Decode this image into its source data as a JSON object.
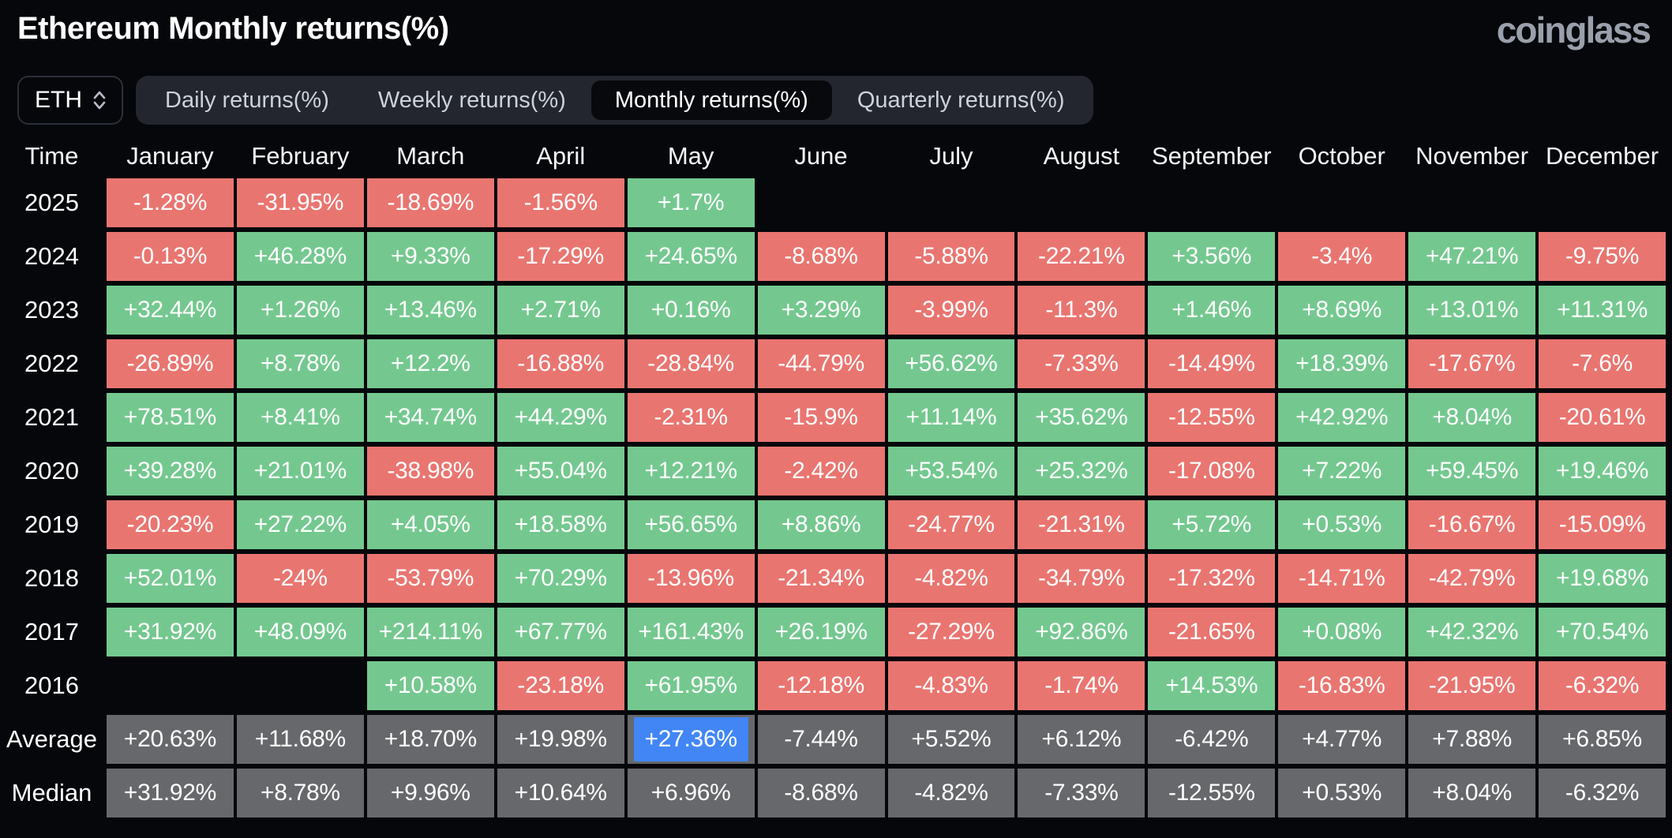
{
  "header": {
    "title": "Ethereum Monthly returns(%)",
    "logo": "coinglass"
  },
  "controls": {
    "symbol_select": {
      "value": "ETH",
      "icon": "updown-chevron-icon"
    },
    "tabs": {
      "items": [
        {
          "label": "Daily returns(%)",
          "active": false
        },
        {
          "label": "Weekly returns(%)",
          "active": false
        },
        {
          "label": "Monthly returns(%)",
          "active": true
        },
        {
          "label": "Quarterly returns(%)",
          "active": false
        }
      ]
    }
  },
  "table": {
    "columns": [
      "Time",
      "January",
      "February",
      "March",
      "April",
      "May",
      "June",
      "July",
      "August",
      "September",
      "October",
      "November",
      "December"
    ],
    "rows": [
      {
        "label": "2025",
        "cells": [
          {
            "v": "-1.28%",
            "c": "r"
          },
          {
            "v": "-31.95%",
            "c": "r"
          },
          {
            "v": "-18.69%",
            "c": "r"
          },
          {
            "v": "-1.56%",
            "c": "r"
          },
          {
            "v": "+1.7%",
            "c": "g"
          },
          null,
          null,
          null,
          null,
          null,
          null,
          null
        ]
      },
      {
        "label": "2024",
        "cells": [
          {
            "v": "-0.13%",
            "c": "r"
          },
          {
            "v": "+46.28%",
            "c": "g"
          },
          {
            "v": "+9.33%",
            "c": "g"
          },
          {
            "v": "-17.29%",
            "c": "r"
          },
          {
            "v": "+24.65%",
            "c": "g"
          },
          {
            "v": "-8.68%",
            "c": "r"
          },
          {
            "v": "-5.88%",
            "c": "r"
          },
          {
            "v": "-22.21%",
            "c": "r"
          },
          {
            "v": "+3.56%",
            "c": "g"
          },
          {
            "v": "-3.4%",
            "c": "r"
          },
          {
            "v": "+47.21%",
            "c": "g"
          },
          {
            "v": "-9.75%",
            "c": "r"
          }
        ]
      },
      {
        "label": "2023",
        "cells": [
          {
            "v": "+32.44%",
            "c": "g"
          },
          {
            "v": "+1.26%",
            "c": "g"
          },
          {
            "v": "+13.46%",
            "c": "g"
          },
          {
            "v": "+2.71%",
            "c": "g"
          },
          {
            "v": "+0.16%",
            "c": "g"
          },
          {
            "v": "+3.29%",
            "c": "g"
          },
          {
            "v": "-3.99%",
            "c": "r"
          },
          {
            "v": "-11.3%",
            "c": "r"
          },
          {
            "v": "+1.46%",
            "c": "g"
          },
          {
            "v": "+8.69%",
            "c": "g"
          },
          {
            "v": "+13.01%",
            "c": "g"
          },
          {
            "v": "+11.31%",
            "c": "g"
          }
        ]
      },
      {
        "label": "2022",
        "cells": [
          {
            "v": "-26.89%",
            "c": "r"
          },
          {
            "v": "+8.78%",
            "c": "g"
          },
          {
            "v": "+12.2%",
            "c": "g"
          },
          {
            "v": "-16.88%",
            "c": "r"
          },
          {
            "v": "-28.84%",
            "c": "r"
          },
          {
            "v": "-44.79%",
            "c": "r"
          },
          {
            "v": "+56.62%",
            "c": "g"
          },
          {
            "v": "-7.33%",
            "c": "r"
          },
          {
            "v": "-14.49%",
            "c": "r"
          },
          {
            "v": "+18.39%",
            "c": "g"
          },
          {
            "v": "-17.67%",
            "c": "r"
          },
          {
            "v": "-7.6%",
            "c": "r"
          }
        ]
      },
      {
        "label": "2021",
        "cells": [
          {
            "v": "+78.51%",
            "c": "g"
          },
          {
            "v": "+8.41%",
            "c": "g"
          },
          {
            "v": "+34.74%",
            "c": "g"
          },
          {
            "v": "+44.29%",
            "c": "g"
          },
          {
            "v": "-2.31%",
            "c": "r"
          },
          {
            "v": "-15.9%",
            "c": "r"
          },
          {
            "v": "+11.14%",
            "c": "g"
          },
          {
            "v": "+35.62%",
            "c": "g"
          },
          {
            "v": "-12.55%",
            "c": "r"
          },
          {
            "v": "+42.92%",
            "c": "g"
          },
          {
            "v": "+8.04%",
            "c": "g"
          },
          {
            "v": "-20.61%",
            "c": "r"
          }
        ]
      },
      {
        "label": "2020",
        "cells": [
          {
            "v": "+39.28%",
            "c": "g"
          },
          {
            "v": "+21.01%",
            "c": "g"
          },
          {
            "v": "-38.98%",
            "c": "r"
          },
          {
            "v": "+55.04%",
            "c": "g"
          },
          {
            "v": "+12.21%",
            "c": "g"
          },
          {
            "v": "-2.42%",
            "c": "r"
          },
          {
            "v": "+53.54%",
            "c": "g"
          },
          {
            "v": "+25.32%",
            "c": "g"
          },
          {
            "v": "-17.08%",
            "c": "r"
          },
          {
            "v": "+7.22%",
            "c": "g"
          },
          {
            "v": "+59.45%",
            "c": "g"
          },
          {
            "v": "+19.46%",
            "c": "g"
          }
        ]
      },
      {
        "label": "2019",
        "cells": [
          {
            "v": "-20.23%",
            "c": "r"
          },
          {
            "v": "+27.22%",
            "c": "g"
          },
          {
            "v": "+4.05%",
            "c": "g"
          },
          {
            "v": "+18.58%",
            "c": "g"
          },
          {
            "v": "+56.65%",
            "c": "g"
          },
          {
            "v": "+8.86%",
            "c": "g"
          },
          {
            "v": "-24.77%",
            "c": "r"
          },
          {
            "v": "-21.31%",
            "c": "r"
          },
          {
            "v": "+5.72%",
            "c": "g"
          },
          {
            "v": "+0.53%",
            "c": "g"
          },
          {
            "v": "-16.67%",
            "c": "r"
          },
          {
            "v": "-15.09%",
            "c": "r"
          }
        ]
      },
      {
        "label": "2018",
        "cells": [
          {
            "v": "+52.01%",
            "c": "g"
          },
          {
            "v": "-24%",
            "c": "r"
          },
          {
            "v": "-53.79%",
            "c": "r"
          },
          {
            "v": "+70.29%",
            "c": "g"
          },
          {
            "v": "-13.96%",
            "c": "r"
          },
          {
            "v": "-21.34%",
            "c": "r"
          },
          {
            "v": "-4.82%",
            "c": "r"
          },
          {
            "v": "-34.79%",
            "c": "r"
          },
          {
            "v": "-17.32%",
            "c": "r"
          },
          {
            "v": "-14.71%",
            "c": "r"
          },
          {
            "v": "-42.79%",
            "c": "r"
          },
          {
            "v": "+19.68%",
            "c": "g"
          }
        ]
      },
      {
        "label": "2017",
        "cells": [
          {
            "v": "+31.92%",
            "c": "g"
          },
          {
            "v": "+48.09%",
            "c": "g"
          },
          {
            "v": "+214.11%",
            "c": "g"
          },
          {
            "v": "+67.77%",
            "c": "g"
          },
          {
            "v": "+161.43%",
            "c": "g"
          },
          {
            "v": "+26.19%",
            "c": "g"
          },
          {
            "v": "-27.29%",
            "c": "r"
          },
          {
            "v": "+92.86%",
            "c": "g"
          },
          {
            "v": "-21.65%",
            "c": "r"
          },
          {
            "v": "+0.08%",
            "c": "g"
          },
          {
            "v": "+42.32%",
            "c": "g"
          },
          {
            "v": "+70.54%",
            "c": "g"
          }
        ]
      },
      {
        "label": "2016",
        "cells": [
          null,
          null,
          {
            "v": "+10.58%",
            "c": "g"
          },
          {
            "v": "-23.18%",
            "c": "r"
          },
          {
            "v": "+61.95%",
            "c": "g"
          },
          {
            "v": "-12.18%",
            "c": "r"
          },
          {
            "v": "-4.83%",
            "c": "r"
          },
          {
            "v": "-1.74%",
            "c": "r"
          },
          {
            "v": "+14.53%",
            "c": "g"
          },
          {
            "v": "-16.83%",
            "c": "r"
          },
          {
            "v": "-21.95%",
            "c": "r"
          },
          {
            "v": "-6.32%",
            "c": "r"
          }
        ]
      },
      {
        "label": "Average",
        "cells": [
          {
            "v": "+20.63%",
            "c": "n"
          },
          {
            "v": "+11.68%",
            "c": "n"
          },
          {
            "v": "+18.70%",
            "c": "n"
          },
          {
            "v": "+19.98%",
            "c": "n"
          },
          {
            "v": "+27.36%",
            "c": "n",
            "h": true
          },
          {
            "v": "-7.44%",
            "c": "n"
          },
          {
            "v": "+5.52%",
            "c": "n"
          },
          {
            "v": "+6.12%",
            "c": "n"
          },
          {
            "v": "-6.42%",
            "c": "n"
          },
          {
            "v": "+4.77%",
            "c": "n"
          },
          {
            "v": "+7.88%",
            "c": "n"
          },
          {
            "v": "+6.85%",
            "c": "n"
          }
        ]
      },
      {
        "label": "Median",
        "cells": [
          {
            "v": "+31.92%",
            "c": "n"
          },
          {
            "v": "+8.78%",
            "c": "n"
          },
          {
            "v": "+9.96%",
            "c": "n"
          },
          {
            "v": "+10.64%",
            "c": "n"
          },
          {
            "v": "+6.96%",
            "c": "n"
          },
          {
            "v": "-8.68%",
            "c": "n"
          },
          {
            "v": "-4.82%",
            "c": "n"
          },
          {
            "v": "-7.33%",
            "c": "n"
          },
          {
            "v": "-12.55%",
            "c": "n"
          },
          {
            "v": "+0.53%",
            "c": "n"
          },
          {
            "v": "+8.04%",
            "c": "n"
          },
          {
            "v": "-6.32%",
            "c": "n"
          }
        ]
      }
    ]
  },
  "theme": {
    "bg": "#05070b",
    "green": "#74c88f",
    "red": "#e97570",
    "neutral": "#66686b",
    "highlight": "#4286f5",
    "tabbar_bg": "#23262e",
    "tab_active_bg": "#07090d",
    "text": "#ffffff",
    "muted_text": "#ccd2da",
    "logo_color": "#9aa0ab",
    "border": "#2b2f38"
  },
  "chart_data": {
    "type": "heatmap",
    "title": "Ethereum Monthly returns(%)",
    "columns": [
      "January",
      "February",
      "March",
      "April",
      "May",
      "June",
      "July",
      "August",
      "September",
      "October",
      "November",
      "December"
    ],
    "rows": [
      "2025",
      "2024",
      "2023",
      "2022",
      "2021",
      "2020",
      "2019",
      "2018",
      "2017",
      "2016",
      "Average",
      "Median"
    ],
    "values_pct": [
      [
        -1.28,
        -31.95,
        -18.69,
        -1.56,
        1.7,
        null,
        null,
        null,
        null,
        null,
        null,
        null
      ],
      [
        -0.13,
        46.28,
        9.33,
        -17.29,
        24.65,
        -8.68,
        -5.88,
        -22.21,
        3.56,
        -3.4,
        47.21,
        -9.75
      ],
      [
        32.44,
        1.26,
        13.46,
        2.71,
        0.16,
        3.29,
        -3.99,
        -11.3,
        1.46,
        8.69,
        13.01,
        11.31
      ],
      [
        -26.89,
        8.78,
        12.2,
        -16.88,
        -28.84,
        -44.79,
        56.62,
        -7.33,
        -14.49,
        18.39,
        -17.67,
        -7.6
      ],
      [
        78.51,
        8.41,
        34.74,
        44.29,
        -2.31,
        -15.9,
        11.14,
        35.62,
        -12.55,
        42.92,
        8.04,
        -20.61
      ],
      [
        39.28,
        21.01,
        -38.98,
        55.04,
        12.21,
        -2.42,
        53.54,
        25.32,
        -17.08,
        7.22,
        59.45,
        19.46
      ],
      [
        -20.23,
        27.22,
        4.05,
        18.58,
        56.65,
        8.86,
        -24.77,
        -21.31,
        5.72,
        0.53,
        -16.67,
        -15.09
      ],
      [
        52.01,
        -24,
        -53.79,
        70.29,
        -13.96,
        -21.34,
        -4.82,
        -34.79,
        -17.32,
        -14.71,
        -42.79,
        19.68
      ],
      [
        31.92,
        48.09,
        214.11,
        67.77,
        161.43,
        26.19,
        -27.29,
        92.86,
        -21.65,
        0.08,
        42.32,
        70.54
      ],
      [
        null,
        null,
        10.58,
        -23.18,
        61.95,
        -12.18,
        -4.83,
        -1.74,
        14.53,
        -16.83,
        -21.95,
        -6.32
      ],
      [
        20.63,
        11.68,
        18.7,
        19.98,
        27.36,
        -7.44,
        5.52,
        6.12,
        -6.42,
        4.77,
        7.88,
        6.85
      ],
      [
        31.92,
        8.78,
        9.96,
        10.64,
        6.96,
        -8.68,
        -4.82,
        -7.33,
        -12.55,
        0.53,
        8.04,
        -6.32
      ]
    ],
    "highlighted_cell": {
      "row": "Average",
      "column": "May",
      "value_pct": 27.36
    },
    "color_positive": "#74c88f",
    "color_negative": "#e97570",
    "color_neutral": "#66686b",
    "legend_position": "none",
    "grid": false
  }
}
